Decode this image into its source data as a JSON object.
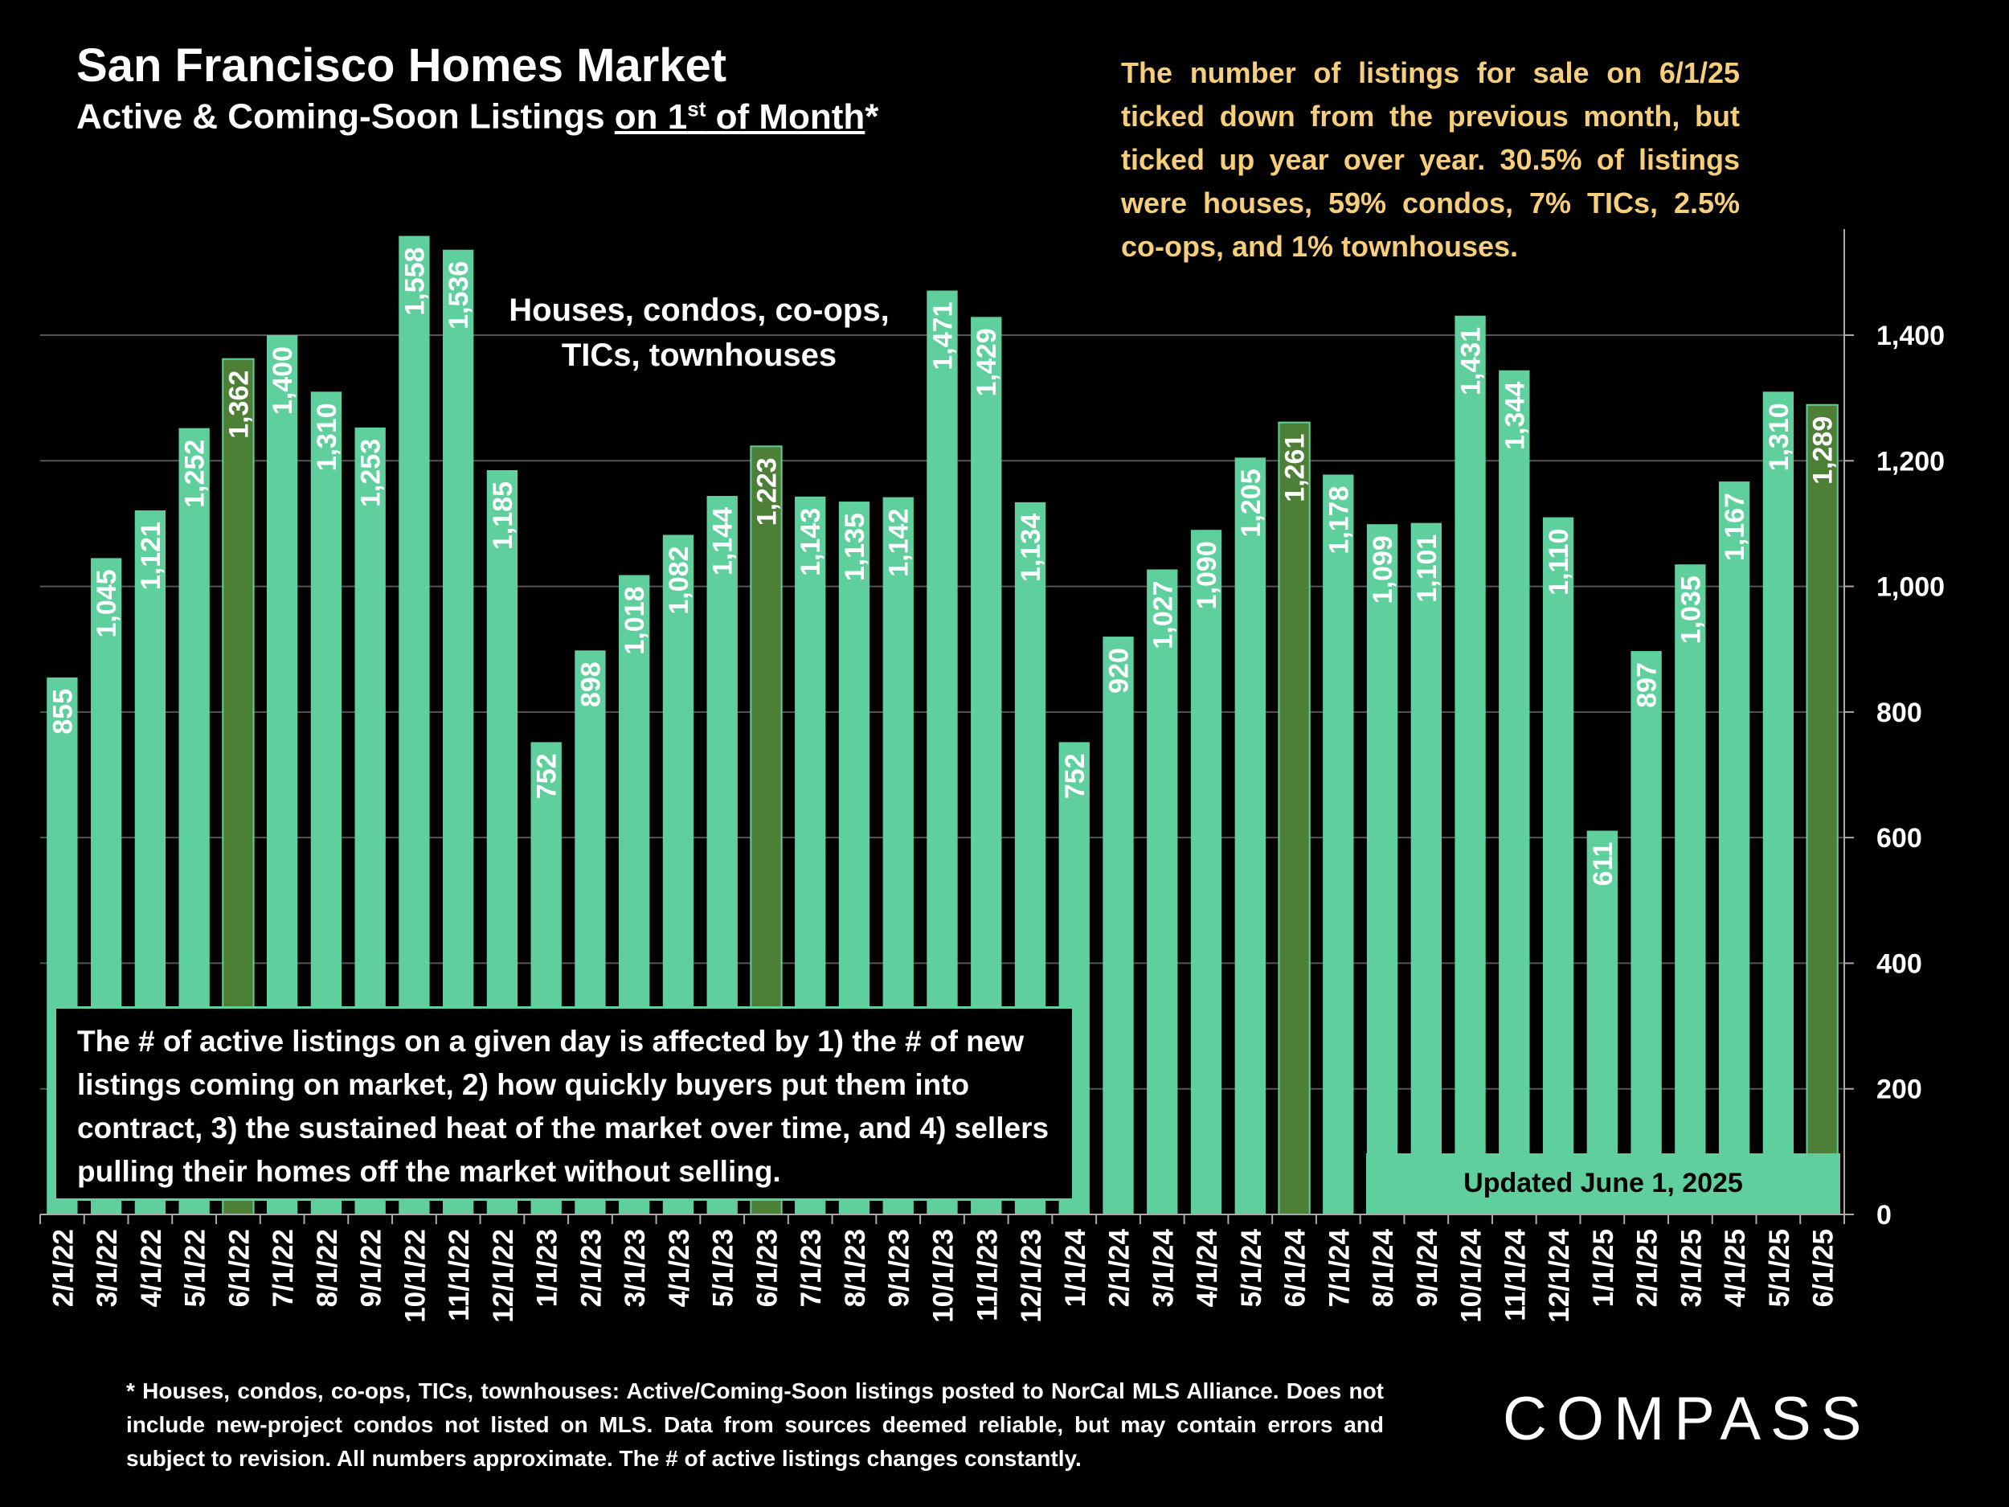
{
  "header": {
    "title": "San Francisco Homes Market",
    "subtitle_pre": "Active & Coming-Soon Listings ",
    "subtitle_underlined_a": "on 1",
    "subtitle_sup": "st",
    "subtitle_underlined_b": " of Month",
    "subtitle_post": "*"
  },
  "commentary": "The number of listings for sale on 6/1/25 ticked down from the previous month, but ticked up year over year. 30.5% of listings were houses, 59% condos, 7% TICs, 2.5% co-ops, and 1% townhouses.",
  "scope_label": "Houses, condos, co-ops, TICs, townhouses",
  "note_box": "The # of active listings on a given day is affected by 1) the # of new listings coming on market, 2) how quickly buyers put them into contract, 3) the sustained heat of the market over time, and 4) sellers pulling their homes off the market without selling.",
  "updated_label": "Updated June 1, 2025",
  "footnote": "* Houses, condos, co-ops, TICs, townhouses: Active/Coming-Soon listings posted to NorCal MLS Alliance. Does not include new-project condos not listed on MLS. Data from sources deemed reliable, but may contain errors and subject to revision. All numbers approximate. The # of active listings changes constantly.",
  "logo": "COMPASS",
  "colors": {
    "bar": "#5fcf9e",
    "highlight": "#4e7f37",
    "grid": "#555555",
    "commentary": "#f7cf7a"
  },
  "chart_data": {
    "type": "bar",
    "categories": [
      "2/1/22",
      "3/1/22",
      "4/1/22",
      "5/1/22",
      "6/1/22",
      "7/1/22",
      "8/1/22",
      "9/1/22",
      "10/1/22",
      "11/1/22",
      "12/1/22",
      "1/1/23",
      "2/1/23",
      "3/1/23",
      "4/1/23",
      "5/1/23",
      "6/1/23",
      "7/1/23",
      "8/1/23",
      "9/1/23",
      "10/1/23",
      "11/1/23",
      "12/1/23",
      "1/1/24",
      "2/1/24",
      "3/1/24",
      "4/1/24",
      "5/1/24",
      "6/1/24",
      "7/1/24",
      "8/1/24",
      "9/1/24",
      "10/1/24",
      "11/1/24",
      "12/1/24",
      "1/1/25",
      "2/1/25",
      "3/1/25",
      "4/1/25",
      "5/1/25",
      "6/1/25"
    ],
    "values": [
      855,
      1045,
      1121,
      1252,
      1362,
      1400,
      1310,
      1253,
      1558,
      1536,
      1185,
      752,
      898,
      1018,
      1082,
      1144,
      1223,
      1143,
      1135,
      1142,
      1471,
      1429,
      1134,
      752,
      920,
      1027,
      1090,
      1205,
      1261,
      1178,
      1099,
      1101,
      1431,
      1344,
      1110,
      611,
      897,
      1035,
      1167,
      1310,
      1289
    ],
    "data_labels": [
      "855",
      "1,045",
      "1,121",
      "1,252",
      "1,362",
      "1,400",
      "1,310",
      "1,253",
      "1,558",
      "1,536",
      "1,185",
      "752",
      "898",
      "1,018",
      "1,082",
      "1,144",
      "1,223",
      "1,143",
      "1,135",
      "1,142",
      "1,471",
      "1,429",
      "1,134",
      "752",
      "920",
      "1,027",
      "1,090",
      "1,205",
      "1,261",
      "1,178",
      "1,099",
      "1,101",
      "1,431",
      "1,344",
      "1,110",
      "611",
      "897",
      "1,035",
      "1,167",
      "1,310",
      "1,289"
    ],
    "highlighted": [
      "6/1/22",
      "6/1/23",
      "6/1/24",
      "6/1/25"
    ],
    "y_ticks": [
      0,
      200,
      400,
      600,
      800,
      1000,
      1200,
      1400
    ],
    "y_tick_labels": [
      "0",
      "200",
      "400",
      "600",
      "800",
      "1,000",
      "1,200",
      "1,400"
    ],
    "ylim": [
      0,
      1560
    ],
    "y_axis_side": "right",
    "grid": true
  }
}
